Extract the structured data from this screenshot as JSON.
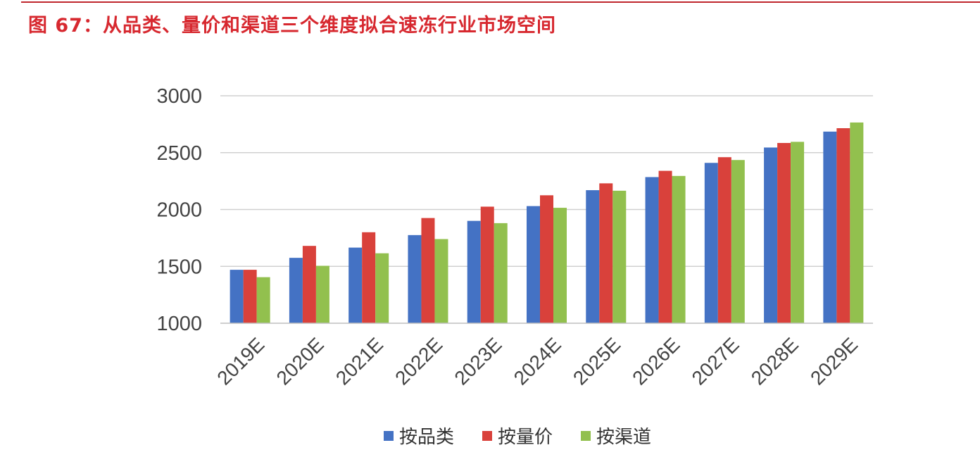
{
  "figure": {
    "title": "图 67：从品类、量价和渠道三个维度拟合速冻行业市场空间"
  },
  "colors": {
    "title": "#d7282f",
    "grid": "#d0d0d0"
  },
  "chart_data": {
    "type": "bar",
    "categories": [
      "2019E",
      "2020E",
      "2021E",
      "2022E",
      "2023E",
      "2024E",
      "2025E",
      "2026E",
      "2027E",
      "2028E",
      "2029E"
    ],
    "series": [
      {
        "name": "按品类",
        "color": "#4472c4",
        "values": [
          1470,
          1575,
          1665,
          1775,
          1900,
          2030,
          2170,
          2285,
          2410,
          2545,
          2685
        ]
      },
      {
        "name": "按量价",
        "color": "#d9413b",
        "values": [
          1470,
          1680,
          1800,
          1925,
          2025,
          2125,
          2230,
          2340,
          2460,
          2585,
          2715
        ]
      },
      {
        "name": "按渠道",
        "color": "#92c04e",
        "values": [
          1405,
          1505,
          1615,
          1740,
          1880,
          2015,
          2165,
          2295,
          2435,
          2595,
          2765
        ]
      }
    ],
    "ylim": [
      1000,
      3000
    ],
    "yticks": [
      1000,
      1500,
      2000,
      2500,
      3000
    ],
    "grid": true,
    "legend": "bottom-center"
  }
}
